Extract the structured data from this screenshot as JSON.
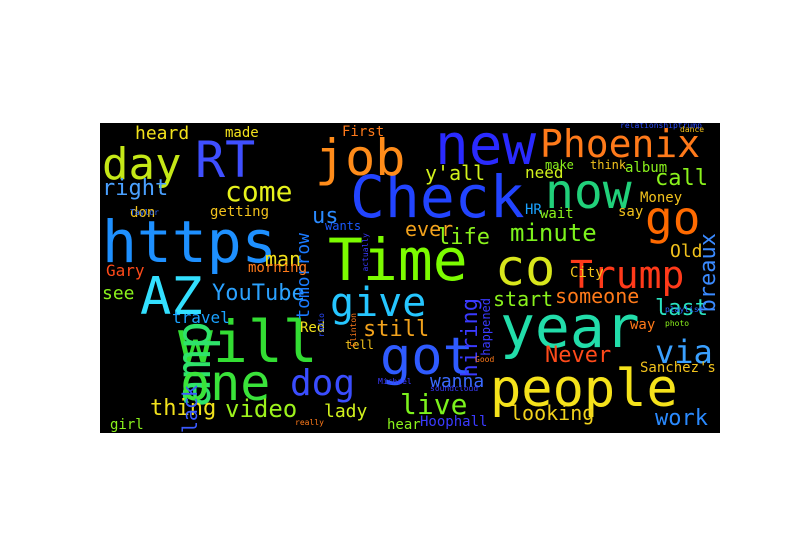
{
  "words": [
    {
      "text": "https",
      "color": "#1e90ff"
    },
    {
      "text": "Check",
      "color": "#2244ff"
    },
    {
      "text": "Time",
      "color": "#7cfc00"
    },
    {
      "text": "new",
      "color": "#2a2aff"
    },
    {
      "text": "job",
      "color": "#ff8c1a"
    },
    {
      "text": "got",
      "color": "#2f5bff"
    },
    {
      "text": "will",
      "color": "#33dd33"
    },
    {
      "text": "year",
      "color": "#22ddaa"
    },
    {
      "text": "people",
      "color": "#f5e21b"
    },
    {
      "text": "day",
      "color": "#c5e817"
    },
    {
      "text": "RT",
      "color": "#3f4fff"
    },
    {
      "text": "now",
      "color": "#21d07a"
    },
    {
      "text": "go",
      "color": "#ff6a00"
    },
    {
      "text": "AZ",
      "color": "#33e0ff"
    },
    {
      "text": "amp",
      "color": "#2ee36a"
    },
    {
      "text": "one",
      "color": "#3ae33a"
    },
    {
      "text": "co",
      "color": "#d8e61c"
    },
    {
      "text": "Phoenix",
      "color": "#ff7a1a"
    },
    {
      "text": "Trump",
      "color": "#ff3a1a"
    },
    {
      "text": "give",
      "color": "#26c6ff"
    },
    {
      "text": "dog",
      "color": "#3a4dff"
    },
    {
      "text": "via",
      "color": "#3aa0ff"
    },
    {
      "text": "come",
      "color": "#e6f21c"
    },
    {
      "text": "video",
      "color": "#9cf21c"
    },
    {
      "text": "live",
      "color": "#7cf21c"
    },
    {
      "text": "life",
      "color": "#8af21c"
    },
    {
      "text": "minute",
      "color": "#7cf21c"
    },
    {
      "text": "right",
      "color": "#4aa0ff"
    },
    {
      "text": "call",
      "color": "#8af21c"
    },
    {
      "text": "YouTube",
      "color": "#2ba2ff"
    },
    {
      "text": "hiring",
      "color": "#3a3aff"
    },
    {
      "text": "still",
      "color": "#f2a21c"
    },
    {
      "text": "thing",
      "color": "#f2e21c"
    },
    {
      "text": "last",
      "color": "#2ae3c0"
    },
    {
      "text": "Never",
      "color": "#ff4a1a"
    },
    {
      "text": "work",
      "color": "#2a8aff"
    },
    {
      "text": "man",
      "color": "#f2e21c"
    },
    {
      "text": "us",
      "color": "#2a8aff"
    },
    {
      "text": "ever",
      "color": "#f2a21c"
    },
    {
      "text": "y'all",
      "color": "#d2f21c"
    },
    {
      "text": "breaux",
      "color": "#3a8aff"
    },
    {
      "text": "tomorrow",
      "color": "#1a7aff"
    },
    {
      "text": "someone",
      "color": "#ff7a1a"
    },
    {
      "text": "start",
      "color": "#8af21c"
    },
    {
      "text": "Black",
      "color": "#3a5aff"
    },
    {
      "text": "looking",
      "color": "#f2d21c"
    },
    {
      "text": "wanna",
      "color": "#3a6aff"
    },
    {
      "text": "lady",
      "color": "#d2f21c"
    },
    {
      "text": "Old",
      "color": "#f2c21c"
    },
    {
      "text": "heard",
      "color": "#f2e21c"
    },
    {
      "text": "see",
      "color": "#8af21c"
    },
    {
      "text": "travel",
      "color": "#1aa2ff"
    },
    {
      "text": "Gary",
      "color": "#ff4a1a"
    },
    {
      "text": "morning",
      "color": "#ff7a1a"
    },
    {
      "text": "getting",
      "color": "#f2c21c"
    },
    {
      "text": "made",
      "color": "#f2e21c"
    },
    {
      "text": "First",
      "color": "#ff7a1a"
    },
    {
      "text": "need",
      "color": "#d2f21c"
    },
    {
      "text": "make",
      "color": "#8af21c"
    },
    {
      "text": "think",
      "color": "#f2c21c"
    },
    {
      "text": "album",
      "color": "#8af21c"
    },
    {
      "text": "Money",
      "color": "#f2c21c"
    },
    {
      "text": "HR",
      "color": "#1aa2ff"
    },
    {
      "text": "wait",
      "color": "#8af21c"
    },
    {
      "text": "say",
      "color": "#f2c21c"
    },
    {
      "text": "City",
      "color": "#f2c21c"
    },
    {
      "text": "Red",
      "color": "#f2e21c"
    },
    {
      "text": "tell",
      "color": "#f2c21c"
    },
    {
      "text": "don",
      "color": "#f2c21c"
    },
    {
      "text": "wants",
      "color": "#1a5aff"
    },
    {
      "text": "girl",
      "color": "#8af21c"
    },
    {
      "text": "hear",
      "color": "#8af21c"
    },
    {
      "text": "Hoophall",
      "color": "#3a3aff"
    },
    {
      "text": "Sanchez's",
      "color": "#f2c21c"
    },
    {
      "text": "way",
      "color": "#ff7a1a"
    },
    {
      "text": "happened",
      "color": "#3a3aff"
    },
    {
      "text": "actually",
      "color": "#3a3aff"
    },
    {
      "text": "Taylor",
      "color": "#2a6aff"
    },
    {
      "text": "Clinton",
      "color": "#ff7a1a"
    },
    {
      "text": "playlist",
      "color": "#2a6aff"
    },
    {
      "text": "photo",
      "color": "#8af21c"
    },
    {
      "text": "really",
      "color": "#ff7a1a"
    },
    {
      "text": "Good",
      "color": "#ff7a1a"
    },
    {
      "text": "Michael",
      "color": "#3a3aff"
    },
    {
      "text": "soundcloud",
      "color": "#3a3aff"
    },
    {
      "text": "relationshiptrump",
      "color": "#2a4aff"
    },
    {
      "text": "dance",
      "color": "#f2c21c"
    },
    {
      "text": "radio",
      "color": "#2a4aff"
    }
  ]
}
